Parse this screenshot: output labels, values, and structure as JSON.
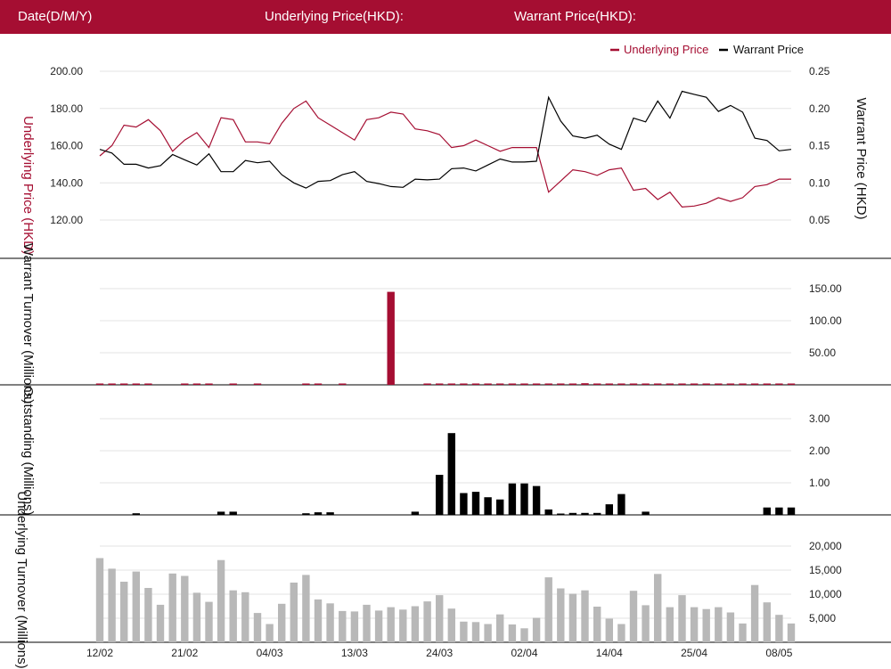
{
  "header": {
    "date_label": "Date(D/M/Y)",
    "underlying_label": "Underlying Price(HKD):",
    "warrant_label": "Warrant Price(HKD):"
  },
  "colors": {
    "header_bg": "#a50e32",
    "underlying": "#a50e32",
    "warrant": "#000000",
    "underlying_turnover": "#b8b8b8"
  },
  "legend": {
    "underlying": "Underlying Price",
    "warrant": "Warrant Price"
  },
  "chart_data": [
    {
      "type": "line",
      "ylabel_left": "Underlying Price (HKD)",
      "ylabel_right": "Warrant  Price (HKD)",
      "left_ticks": [
        "200.00",
        "180.00",
        "160.00",
        "140.00",
        "120.00"
      ],
      "right_ticks": [
        "0.25",
        "0.20",
        "0.15",
        "0.10",
        "0.05"
      ],
      "ylim_left": [
        110,
        210
      ],
      "ylim_right": [
        0.025,
        0.265
      ],
      "series": [
        {
          "name": "Underlying Price",
          "axis": "left",
          "values": [
            154.5,
            160,
            171,
            170,
            174,
            168,
            157,
            163,
            167,
            159,
            175,
            174,
            162,
            162,
            161,
            172,
            180,
            184,
            175,
            171,
            167,
            163,
            174,
            175,
            178,
            177,
            169,
            168,
            166,
            159,
            160,
            163,
            160,
            157,
            159,
            159,
            159,
            135,
            141,
            147,
            146,
            144,
            147,
            148,
            136,
            137,
            131,
            135,
            127,
            127.5,
            129,
            132,
            130,
            132,
            138,
            139,
            142,
            142
          ],
          "gaps": []
        },
        {
          "name": "Warrant Price",
          "axis": "right",
          "values": [
            0.145,
            0.14,
            0.125,
            0.125,
            0.12,
            0.123,
            0.138,
            0.131,
            0.124,
            0.139,
            0.115,
            0.115,
            0.13,
            0.127,
            0.129,
            0.111,
            0.1,
            0.093,
            0.102,
            0.103,
            0.111,
            0.115,
            0.102,
            0.099,
            0.095,
            0.094,
            0.105,
            0.104,
            0.105,
            0.119,
            0.12,
            0.116,
            0.124,
            0.132,
            0.128,
            0.128,
            0.129,
            0.215,
            0.183,
            0.163,
            0.16,
            0.164,
            0.152,
            0.145,
            0.187,
            0.182,
            0.21,
            0.187,
            0.223,
            0.219,
            0.215,
            0.196,
            0.204,
            0.195,
            0.16,
            0.157,
            0.143,
            0.145
          ]
        }
      ]
    },
    {
      "type": "bar",
      "ylabel": "Warrant  Turnover (Millions)",
      "right_ticks": [
        "150.00",
        "100.00",
        "50.00"
      ],
      "ylim": [
        0,
        160
      ],
      "values": [
        0.8,
        0.8,
        0.8,
        0.8,
        0.8,
        0,
        0,
        0.8,
        0.8,
        0.8,
        0,
        0.8,
        0,
        0.8,
        0,
        0,
        0,
        0.8,
        0.8,
        0,
        0.8,
        0,
        0,
        0,
        145,
        0,
        0,
        0.8,
        0.8,
        0.8,
        0.8,
        0.8,
        0.8,
        0.8,
        0.8,
        0.8,
        0.8,
        0.8,
        0.8,
        0.8,
        2.5,
        0.8,
        0.8,
        0.8,
        0.8,
        0.8,
        0.8,
        0.8,
        0.8,
        0.8,
        0.8,
        0.8,
        0.8,
        0.8,
        0.8,
        0.8,
        0.8,
        0.8
      ],
      "color": "#a50e32"
    },
    {
      "type": "bar",
      "ylabel": "Outstanding (Millions)",
      "right_ticks": [
        "3.00",
        "2.00",
        "1.00"
      ],
      "ylim": [
        0,
        3.3
      ],
      "values": [
        0,
        0,
        0,
        0.05,
        0,
        0,
        0,
        0,
        0,
        0,
        0.1,
        0.1,
        0,
        0,
        0,
        0,
        0,
        0.05,
        0.08,
        0.08,
        0,
        0,
        0,
        0,
        0,
        0,
        0.1,
        0,
        1.25,
        2.55,
        0.68,
        0.72,
        0.55,
        0.48,
        0.98,
        0.98,
        0.9,
        0.17,
        0.04,
        0.06,
        0.06,
        0.06,
        0.33,
        0.65,
        0,
        0.1,
        0,
        0,
        0,
        0,
        0,
        0,
        0,
        0,
        0,
        0.23,
        0.23,
        0.23
      ],
      "color": "#000000"
    },
    {
      "type": "bar",
      "ylabel": "Underlying Turnover (Millions)",
      "right_ticks": [
        "20,000",
        "15,000",
        "10,000",
        "5,000"
      ],
      "ylim": [
        0,
        21500
      ],
      "values": [
        17500,
        15300,
        12600,
        14700,
        11300,
        7800,
        14300,
        13800,
        10300,
        8400,
        17100,
        10800,
        10400,
        6100,
        3800,
        8000,
        12400,
        14000,
        8900,
        8100,
        6500,
        6400,
        7800,
        6600,
        7300,
        6800,
        7500,
        8500,
        9800,
        7000,
        4300,
        4200,
        3800,
        5800,
        3700,
        2900,
        5100,
        13500,
        11200,
        10100,
        10800,
        7400,
        4900,
        3800,
        10700,
        7700,
        14200,
        7300,
        9800,
        7300,
        6900,
        7300,
        6200,
        3900,
        11900,
        8300,
        5700,
        3900
      ],
      "color": "#b8b8b8"
    }
  ],
  "x_ticks": [
    "12/02",
    "21/02",
    "04/03",
    "13/03",
    "24/03",
    "02/04",
    "14/04",
    "25/04",
    "08/05"
  ],
  "x_tick_index": [
    0,
    7,
    14,
    21,
    28,
    35,
    42,
    49,
    56
  ]
}
